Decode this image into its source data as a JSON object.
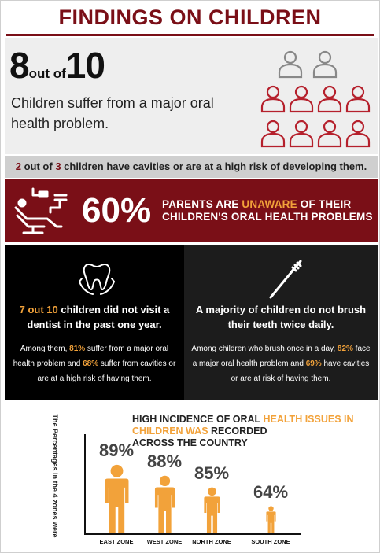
{
  "header": {
    "title": "FINDINGS ON CHILDREN"
  },
  "section1": {
    "stat_num1": "8",
    "stat_mid": "out of",
    "stat_num2": "10",
    "description": "Children suffer from a major oral health problem.",
    "people_icons": {
      "total": 10,
      "highlighted": 8,
      "highlight_color": "#b5202c",
      "base_color": "#888888"
    }
  },
  "section2": {
    "n1": "2",
    "t1": " out of ",
    "n2": "3",
    "t2": " children have cavities or are at a high risk of developing them."
  },
  "section3": {
    "icon": "dental-chair-icon",
    "percent": "60%",
    "line1a": "PARENTS ARE ",
    "line1b": "UNAWARE",
    "line1c": " OF THEIR",
    "line2": "CHILDREN'S ORAL HEALTH PROBLEMS"
  },
  "section4": {
    "left": {
      "icon": "tooth-hands-icon",
      "title_hl": "7 out 10",
      "title_rest": " children did not visit a dentist in the past one year.",
      "body1": "Among them, ",
      "body_hl1": "81%",
      "body2": " suffer from a major oral health problem and ",
      "body_hl2": "68%",
      "body3": " suffer from cavities or are at a high risk of having them."
    },
    "right": {
      "icon": "toothbrush-icon",
      "title": "A majority of children do not brush their teeth twice daily.",
      "body1": "Among children who brush once in a day, ",
      "body_hl1": "82%",
      "body2": " face a major oral health problem and ",
      "body_hl2": "69%",
      "body3": " have cavities or are at risk of having them."
    }
  },
  "section5": {
    "title_l1a": "HIGH INCIDENCE OF ORAL ",
    "title_l1b": "HEALTH ISSUES IN",
    "title_l2a": "CHILDREN WAS",
    "title_l2b": " RECORDED",
    "title_l3": "ACROSS THE COUNTRY",
    "vertical_label": "The Percentages in the 4 zones were",
    "bar_color": "#f2a23a"
  },
  "chart_data": {
    "type": "bar",
    "categories": [
      "EAST ZONE",
      "WEST ZONE",
      "NORTH ZONE",
      "SOUTH ZONE"
    ],
    "values": [
      89,
      88,
      85,
      64
    ],
    "labels": [
      "89%",
      "88%",
      "85%",
      "64%"
    ],
    "title": "HIGH INCIDENCE OF ORAL HEALTH ISSUES IN CHILDREN WAS RECORDED ACROSS THE COUNTRY",
    "ylabel": "The Percentages in the 4 zones were"
  }
}
